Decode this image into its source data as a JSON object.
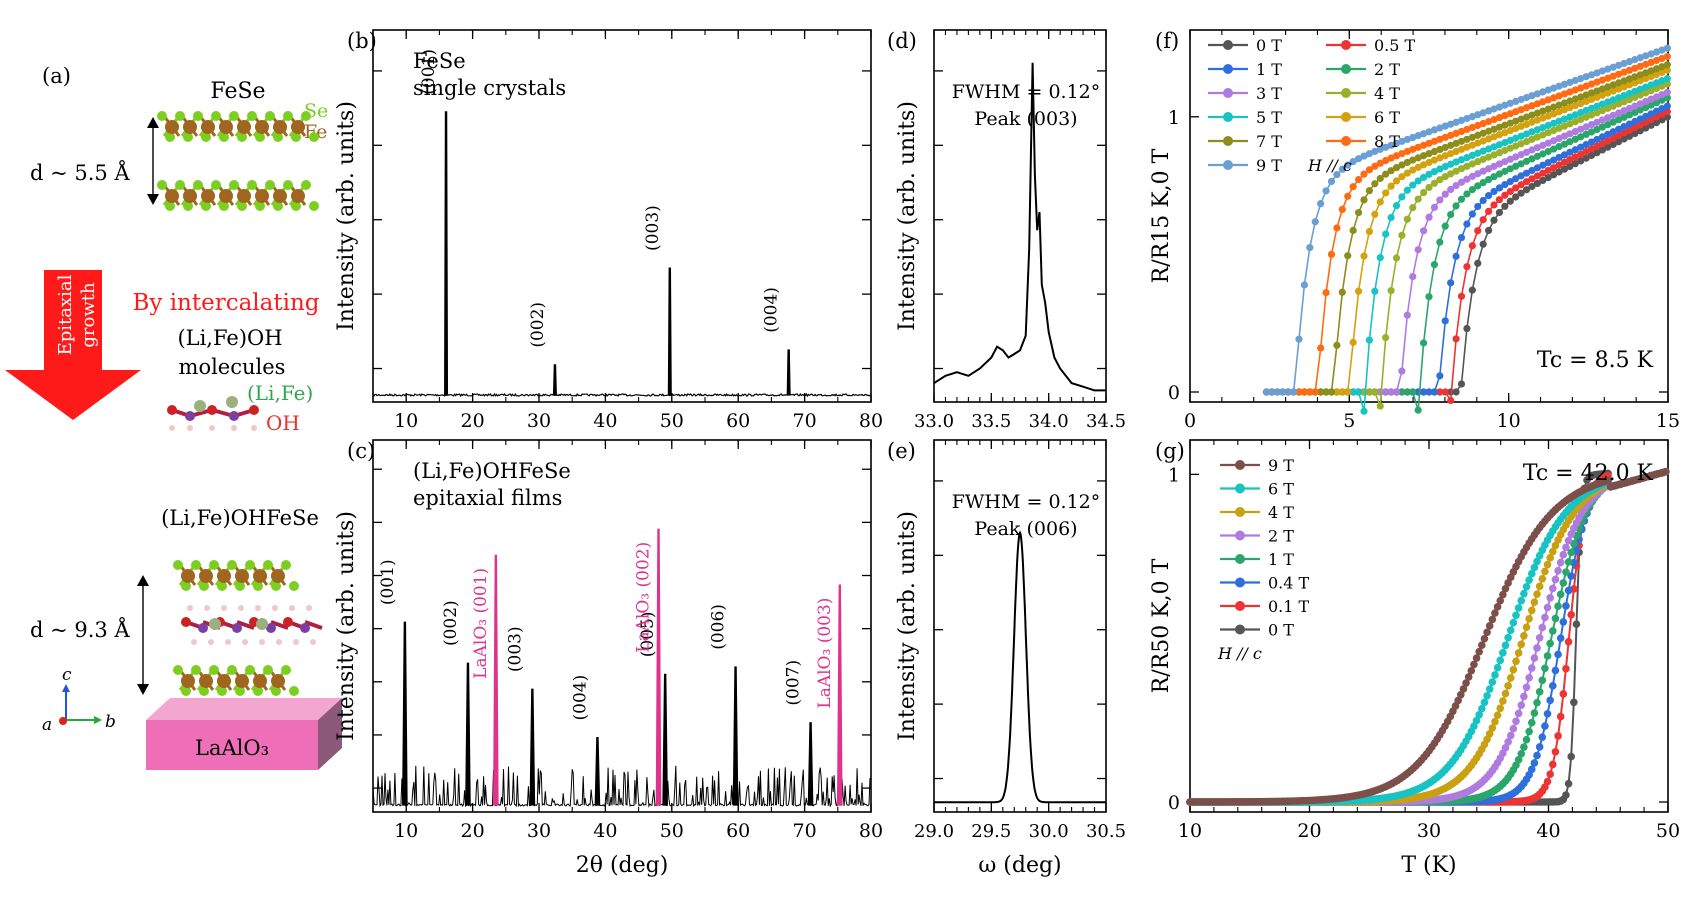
{
  "panel_a": {
    "letter": "(a)",
    "top_material": "FeSe",
    "atom_se": "Se",
    "atom_fe": "Fe",
    "d_top": "d ~ 5.5 Å",
    "arrow_text_1": "Epitaxial",
    "arrow_text_2": "growth",
    "intercalate_line": "By intercalating",
    "molecule_name": "(Li,Fe)OH",
    "molecule_word": "molecules",
    "label_life": "(Li,Fe)",
    "label_oh": "OH",
    "bottom_material": "(Li,Fe)OHFeSe",
    "d_bottom": "d ~ 9.3 Å",
    "substrate": "LaAlO₃",
    "axis_c": "c",
    "axis_a": "a",
    "axis_b": "b",
    "colors": {
      "se": "#7ccf21",
      "fe": "#a0651f",
      "arrow_red": "#ff1a1a",
      "substrate": "#ee6fb8",
      "li_fe": "#2ea84a",
      "oh": "#e8312a"
    }
  },
  "chart_data": [
    {
      "panel": "(b)",
      "type": "line",
      "title_lines": [
        "FeSe",
        "single crystals"
      ],
      "ylabel": "Intensity (arb. units)",
      "xlabel": "",
      "xlim": [
        5,
        80
      ],
      "xticks": [
        10,
        20,
        30,
        40,
        50,
        60,
        70,
        80
      ],
      "yscale": "log",
      "color": "#000000",
      "peaks": [
        {
          "x": 16.0,
          "height": 0.78,
          "label": "(001)"
        },
        {
          "x": 32.4,
          "height": 0.1,
          "label": "(002)"
        },
        {
          "x": 49.7,
          "height": 0.36,
          "label": "(003)"
        },
        {
          "x": 67.6,
          "height": 0.14,
          "label": "(004)"
        }
      ]
    },
    {
      "panel": "(c)",
      "type": "line",
      "title_lines": [
        "(Li,Fe)OHFeSe",
        "epitaxial films"
      ],
      "ylabel": "Intensity (arb. units)",
      "xlabel": "2θ (deg)",
      "xlim": [
        5,
        80
      ],
      "xticks": [
        10,
        20,
        30,
        40,
        50,
        60,
        70,
        80
      ],
      "yscale": "log",
      "color": "#000000",
      "substrate_color": "#e0338c",
      "peaks": [
        {
          "x": 9.8,
          "height": 0.51,
          "label": "(001)"
        },
        {
          "x": 19.3,
          "height": 0.4,
          "label": "(002)"
        },
        {
          "x": 29.0,
          "height": 0.33,
          "label": "(003)"
        },
        {
          "x": 38.8,
          "height": 0.2,
          "label": "(004)"
        },
        {
          "x": 49.0,
          "height": 0.37,
          "label": "(005)"
        },
        {
          "x": 59.6,
          "height": 0.39,
          "label": "(006)"
        },
        {
          "x": 70.9,
          "height": 0.24,
          "label": "(007)"
        }
      ],
      "substrate_peaks": [
        {
          "x": 23.5,
          "height": 0.69,
          "label": "LaAlO₃ (001)"
        },
        {
          "x": 48.0,
          "height": 0.76,
          "label": "LaAlO₃ (002)"
        },
        {
          "x": 75.3,
          "height": 0.61,
          "label": "LaAlO₃ (003)"
        }
      ]
    },
    {
      "panel": "(d)",
      "type": "line",
      "ylabel": "Intensity (arb. units)",
      "xlabel": "",
      "xlim": [
        33.0,
        34.5
      ],
      "xticks": [
        "33.0",
        "33.5",
        "34.0",
        "34.5"
      ],
      "annotation_lines": [
        "FWHM = 0.12°",
        "Peak (003)"
      ],
      "x": [
        33.0,
        33.1,
        33.2,
        33.3,
        33.4,
        33.5,
        33.55,
        33.6,
        33.65,
        33.7,
        33.75,
        33.8,
        33.83,
        33.86,
        33.88,
        33.9,
        33.92,
        33.94,
        33.97,
        34.0,
        34.05,
        34.1,
        34.2,
        34.3,
        34.4,
        34.5
      ],
      "y": [
        0.03,
        0.05,
        0.06,
        0.05,
        0.07,
        0.1,
        0.13,
        0.12,
        0.1,
        0.11,
        0.12,
        0.16,
        0.4,
        0.91,
        0.6,
        0.45,
        0.5,
        0.3,
        0.25,
        0.17,
        0.1,
        0.07,
        0.03,
        0.02,
        0.01,
        0.01
      ]
    },
    {
      "panel": "(e)",
      "type": "line",
      "ylabel": "Intensity (arb. units)",
      "xlabel": "ω (deg)",
      "xlim": [
        29.0,
        30.5
      ],
      "xticks": [
        "29.0",
        "29.5",
        "30.0",
        "30.5"
      ],
      "annotation_lines": [
        "FWHM = 0.12°",
        "Peak (006)"
      ],
      "peak_center": 29.75,
      "peak_height": 0.74,
      "peak_sigma": 0.052
    },
    {
      "panel": "(f)",
      "type": "scatter",
      "ylabel": "R/R15 K,0 T",
      "xlabel": "",
      "xlim": [
        0,
        15
      ],
      "ylim": [
        0,
        1.25
      ],
      "xticks": [
        0,
        5,
        10,
        15
      ],
      "yticks": [
        0,
        1
      ],
      "annotation": "Tc = 8.5 K",
      "field_direction": "H // c",
      "legend_position": "top-left",
      "series": [
        {
          "name": "0 T",
          "color": "#555555",
          "tc": 8.5,
          "r15": 1.0
        },
        {
          "name": "0.5 T",
          "color": "#ee3333",
          "tc": 8.2,
          "r15": 1.02
        },
        {
          "name": "1 T",
          "color": "#2f6fdb",
          "tc": 7.8,
          "r15": 1.04
        },
        {
          "name": "2 T",
          "color": "#2ba66a",
          "tc": 7.2,
          "r15": 1.07
        },
        {
          "name": "3 T",
          "color": "#b07be0",
          "tc": 6.6,
          "r15": 1.09
        },
        {
          "name": "4 T",
          "color": "#9ab02a",
          "tc": 6.0,
          "r15": 1.12
        },
        {
          "name": "5 T",
          "color": "#17c3c3",
          "tc": 5.5,
          "r15": 1.14
        },
        {
          "name": "6 T",
          "color": "#d4a10f",
          "tc": 5.0,
          "r15": 1.17
        },
        {
          "name": "7 T",
          "color": "#8d8d1c",
          "tc": 4.5,
          "r15": 1.19
        },
        {
          "name": "8 T",
          "color": "#ff6a12",
          "tc": 4.0,
          "r15": 1.22
        },
        {
          "name": "9 T",
          "color": "#6a9fd4",
          "tc": 3.3,
          "r15": 1.25
        }
      ]
    },
    {
      "panel": "(g)",
      "type": "scatter",
      "ylabel": "R/R50 K,0 T",
      "xlabel": "T (K)",
      "xlim": [
        10,
        50
      ],
      "ylim": [
        0,
        1.05
      ],
      "xticks": [
        10,
        20,
        30,
        40,
        50
      ],
      "yticks": [
        0,
        1
      ],
      "annotation": "Tc = 42.0 K",
      "field_direction": "H // c",
      "legend_position": "top-left",
      "series": [
        {
          "name": "9 T",
          "color": "#7d4f4a",
          "mid": 34.5,
          "width": 5.0
        },
        {
          "name": "6 T",
          "color": "#17c3c3",
          "mid": 36.5,
          "width": 4.3
        },
        {
          "name": "4 T",
          "color": "#c8a012",
          "mid": 37.8,
          "width": 3.8
        },
        {
          "name": "2 T",
          "color": "#b07be0",
          "mid": 39.2,
          "width": 3.2
        },
        {
          "name": "1 T",
          "color": "#2ba66a",
          "mid": 40.2,
          "width": 2.6
        },
        {
          "name": "0.4 T",
          "color": "#2f6fdb",
          "mid": 41.0,
          "width": 2.0
        },
        {
          "name": "0.1 T",
          "color": "#ee3333",
          "mid": 41.7,
          "width": 1.2
        },
        {
          "name": "0 T",
          "color": "#555555",
          "mid": 42.3,
          "width": 0.4
        }
      ]
    }
  ]
}
